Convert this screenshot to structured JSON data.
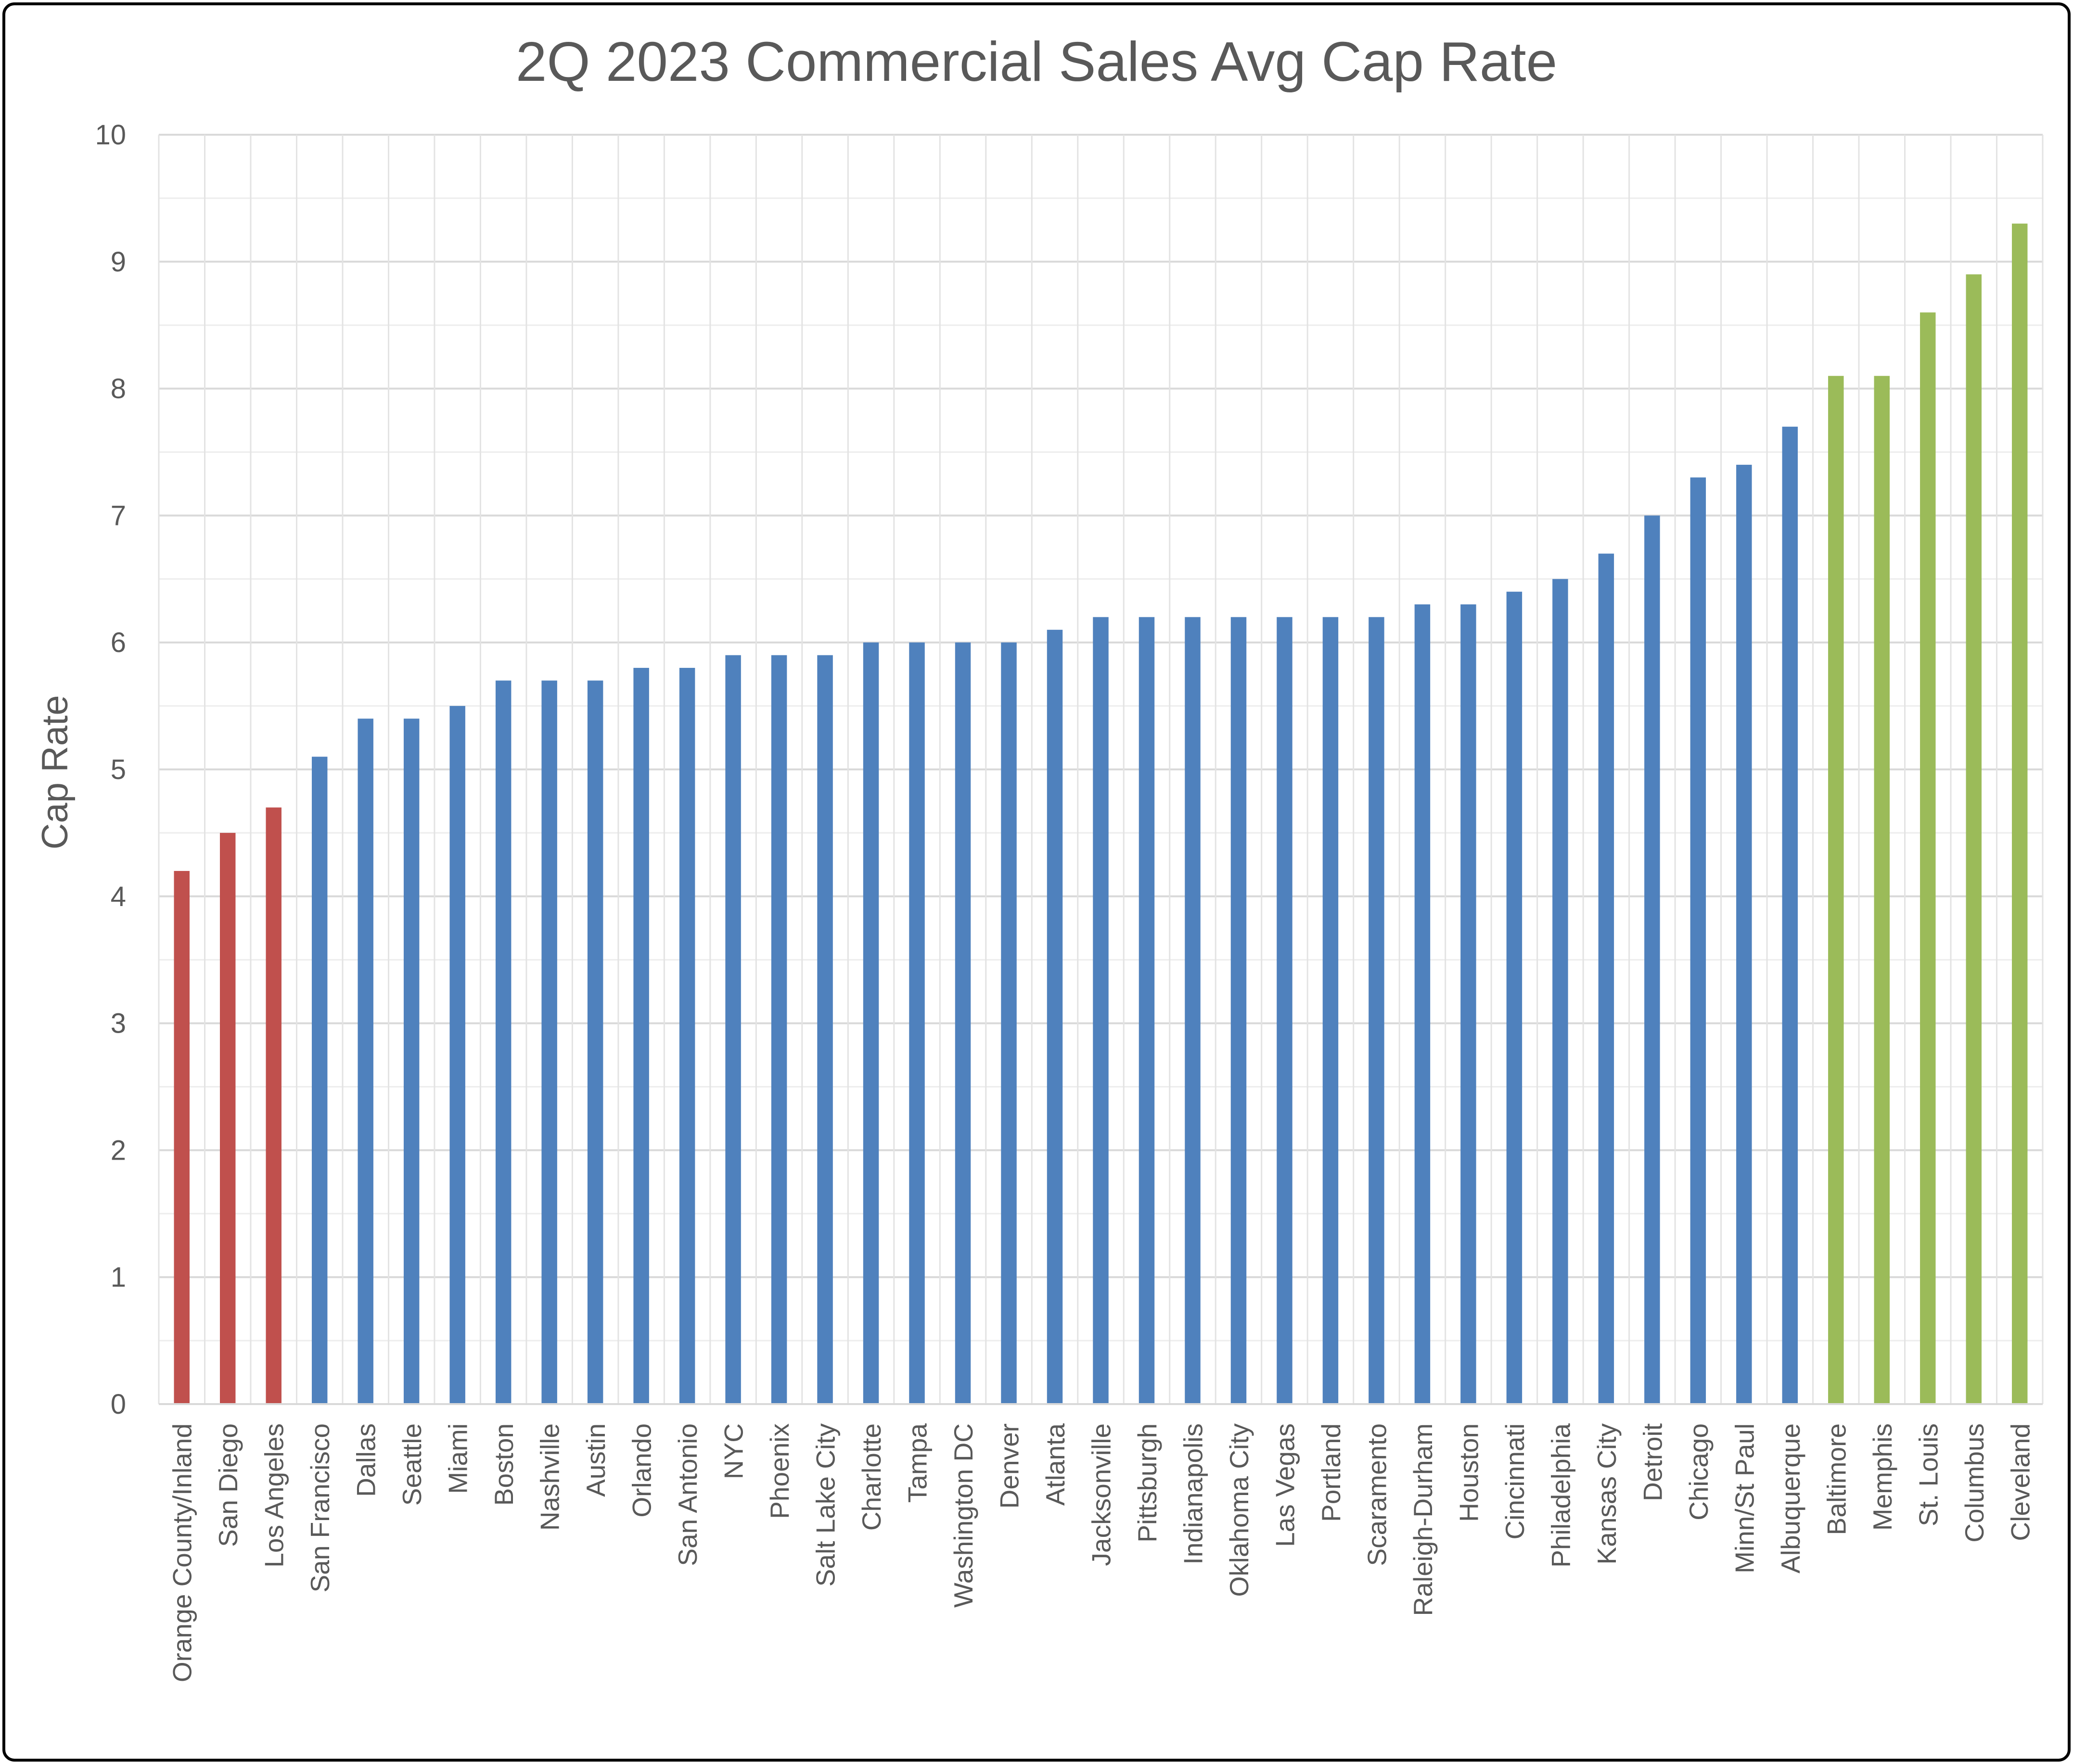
{
  "chart_data": {
    "type": "bar",
    "title": "2Q 2023 Commercial Sales Avg Cap Rate",
    "xlabel": "",
    "ylabel": "Cap Rate",
    "ylim": [
      0,
      10
    ],
    "yticks": [
      0,
      1,
      2,
      3,
      4,
      5,
      6,
      7,
      8,
      9,
      10
    ],
    "grid": true,
    "colors": {
      "low": "#C0504D",
      "mid": "#4F81BD",
      "high": "#9BBB59",
      "gridline": "#D9D9D9",
      "border": "#000000",
      "text": "#595959"
    },
    "categories": [
      "Orange County/Inland",
      "San Diego",
      "Los Angeles",
      "San Francisco",
      "Dallas",
      "Seattle",
      "Miami",
      "Boston",
      "Nashville",
      "Austin",
      "Orlando",
      "San Antonio",
      "NYC",
      "Phoenix",
      "Salt Lake City",
      "Charlotte",
      "Tampa",
      "Washington DC",
      "Denver",
      "Atlanta",
      "Jacksonville",
      "Pittsburgh",
      "Indianapolis",
      "Oklahoma City",
      "Las Vegas",
      "Portland",
      "Scaramento",
      "Raleigh-Durham",
      "Houston",
      "Cincinnati",
      "Philadelphia",
      "Kansas City",
      "Detroit",
      "Chicago",
      "Minn/St Paul",
      "Albuquerque",
      "Baltimore",
      "Memphis",
      "St. Louis",
      "Columbus",
      "Cleveland"
    ],
    "values": [
      4.2,
      4.5,
      4.7,
      5.1,
      5.4,
      5.4,
      5.5,
      5.7,
      5.7,
      5.7,
      5.8,
      5.8,
      5.9,
      5.9,
      5.9,
      6.0,
      6.0,
      6.0,
      6.0,
      6.1,
      6.2,
      6.2,
      6.2,
      6.2,
      6.2,
      6.2,
      6.2,
      6.3,
      6.3,
      6.4,
      6.5,
      6.7,
      7.0,
      7.3,
      7.4,
      7.7,
      8.1,
      8.1,
      8.6,
      8.9,
      9.3
    ],
    "bar_color_groups": [
      "low",
      "low",
      "low",
      "mid",
      "mid",
      "mid",
      "mid",
      "mid",
      "mid",
      "mid",
      "mid",
      "mid",
      "mid",
      "mid",
      "mid",
      "mid",
      "mid",
      "mid",
      "mid",
      "mid",
      "mid",
      "mid",
      "mid",
      "mid",
      "mid",
      "mid",
      "mid",
      "mid",
      "mid",
      "mid",
      "mid",
      "mid",
      "mid",
      "mid",
      "mid",
      "mid",
      "high",
      "high",
      "high",
      "high",
      "high"
    ]
  }
}
